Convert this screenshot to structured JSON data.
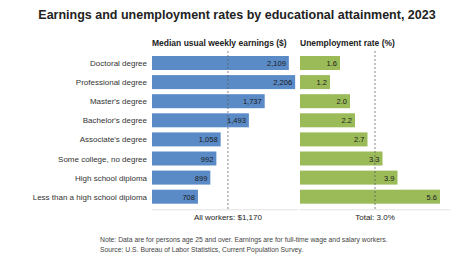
{
  "title": "Earnings and unemployment rates by educational attainment, 2023",
  "chart_data": [
    {
      "type": "bar",
      "orientation": "horizontal",
      "title": "Median usual weekly earnings ($)",
      "categories": [
        "Doctoral degree",
        "Professional degree",
        "Master's degree",
        "Bachelor's degree",
        "Associate's degree",
        "Some college, no degree",
        "High school diploma",
        "Less than a high school diploma"
      ],
      "values": [
        2109,
        2206,
        1737,
        1493,
        1058,
        992,
        899,
        708
      ],
      "value_labels": [
        "2,109",
        "2,206",
        "1,737",
        "1,493",
        "1,058",
        "992",
        "899",
        "708"
      ],
      "color": "#5b8bc6",
      "data_labels": true,
      "tick_labels": "y",
      "grid": false,
      "xlim": [
        0,
        2250
      ],
      "annotations": [
        {
          "text": "All workers: $1,170",
          "value": 1170
        }
      ]
    },
    {
      "type": "bar",
      "orientation": "horizontal",
      "title": "Unemployment rate (%)",
      "values": [
        1.6,
        1.2,
        2.0,
        2.2,
        2.7,
        3.3,
        3.9,
        5.6
      ],
      "value_labels": [
        "1.6",
        "1.2",
        "2.0",
        "2.2",
        "2.7",
        "3.3",
        "3.9",
        "5.6"
      ],
      "color": "#9bbb59",
      "data_labels": true,
      "tick_labels": false,
      "grid": false,
      "xlim": [
        0,
        6
      ],
      "annotations": [
        {
          "text": "Total: 3.0%",
          "value": 3.0
        }
      ]
    }
  ],
  "note": "Note: Data are for persons age 25 and over. Earnings are for full-time wage and salary workers.",
  "source": "Source: U.S. Bureau of Labor Statistics, Current Population Survey."
}
